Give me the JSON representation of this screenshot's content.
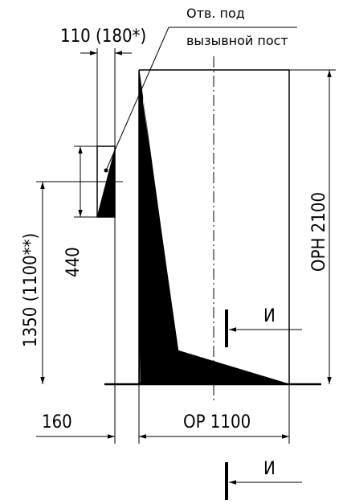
{
  "dimensions": {
    "panel_width": "110 (180*)",
    "panel_height": "440",
    "mount_height": "1350 (1100**)",
    "side_offset": "160",
    "door_width": "ОР 1100",
    "door_height": "ОРН 2100"
  },
  "annotations": {
    "note_line1": "Отв. под",
    "note_line2": "вызывной пост"
  },
  "section_marks": {
    "upper": "И",
    "lower": "И"
  }
}
